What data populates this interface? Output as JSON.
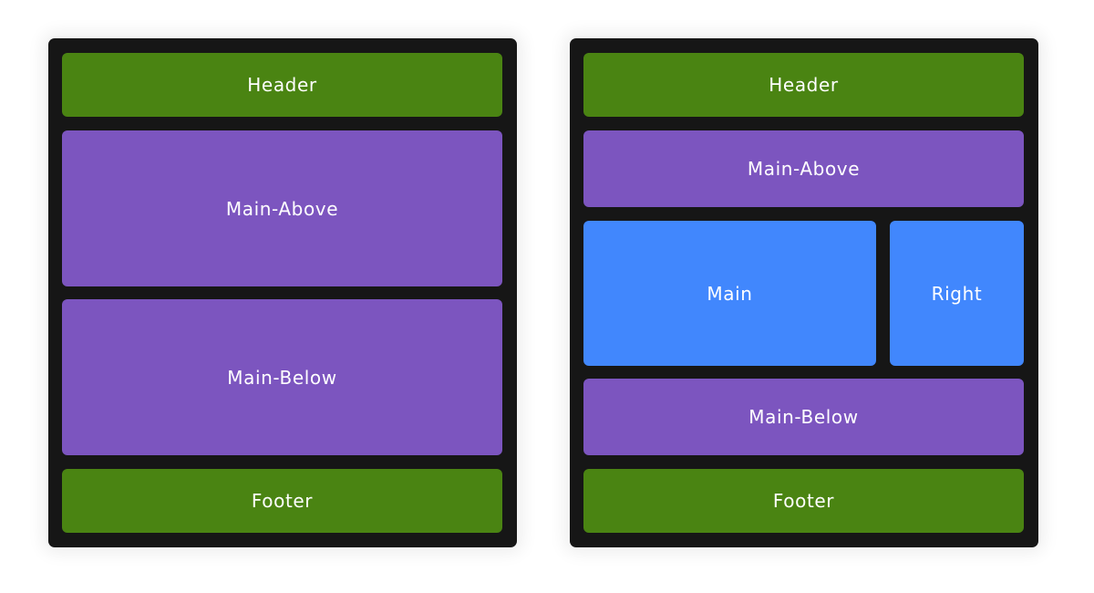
{
  "colors": {
    "frame": "#161616",
    "green": "#4a8412",
    "purple": "#7c55bf",
    "blue": "#4187fd"
  },
  "left_layout": {
    "header": "Header",
    "main_above": "Main-Above",
    "main_below": "Main-Below",
    "footer": "Footer"
  },
  "right_layout": {
    "header": "Header",
    "main_above": "Main-Above",
    "main": "Main",
    "right": "Right",
    "main_below": "Main-Below",
    "footer": "Footer"
  }
}
